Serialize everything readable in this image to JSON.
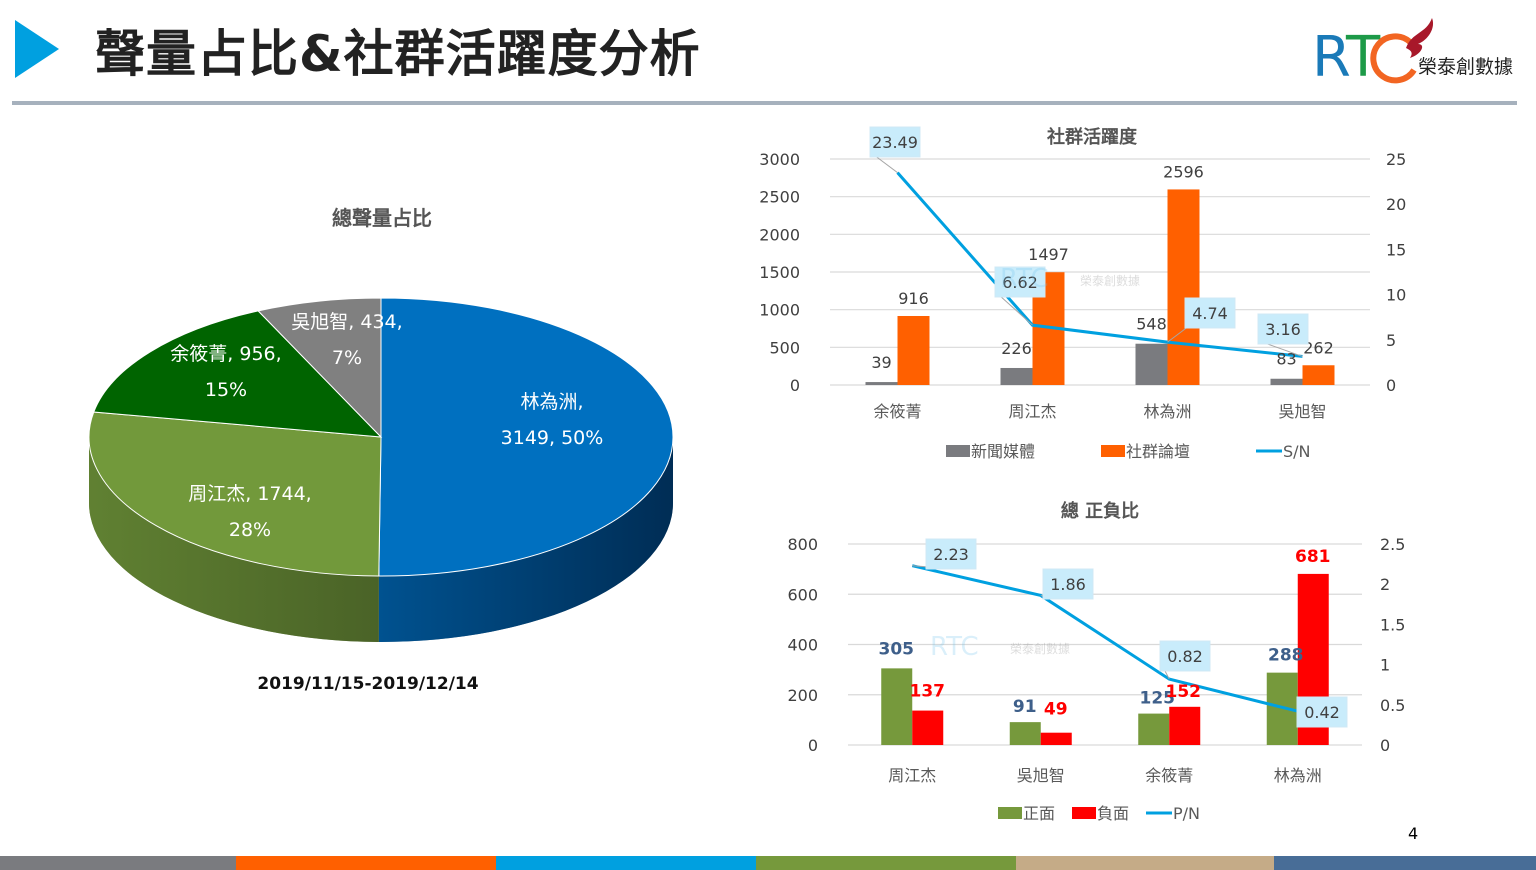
{
  "header": {
    "title": "聲量占比&社群活躍度分析",
    "logo_letters": "RTC",
    "logo_text": "榮泰創數據",
    "arrow_color": "#00a0e0"
  },
  "page_number": "4",
  "footer_colors": [
    "#7a7b7f",
    "#ff6000",
    "#00a0e0",
    "#76993c",
    "#c5ab87",
    "#486d97"
  ],
  "watermark": {
    "letters": "RTC",
    "text": "榮泰創數據"
  },
  "chart_data": [
    {
      "type": "pie",
      "title": "總聲量占比",
      "subtitle": "2019/11/15-2019/12/14",
      "slices": [
        {
          "label": "林為洲",
          "value": 3149,
          "percent": "50%",
          "color": "#0070c0",
          "side_color": "#002d55"
        },
        {
          "label": "周江杰",
          "value": 1744,
          "percent": "28%",
          "color": "#72993b",
          "side_color": "#4a6327"
        },
        {
          "label": "余筱菁",
          "value": 956,
          "percent": "15%",
          "color": "#006400",
          "side_color": "#004000"
        },
        {
          "label": "吳旭智",
          "value": 434,
          "percent": "7%",
          "color": "#808080",
          "side_color": "#555555"
        }
      ]
    },
    {
      "type": "bar",
      "title": "社群活躍度",
      "categories": [
        "余筱菁",
        "周江杰",
        "林為洲",
        "吳旭智"
      ],
      "series": [
        {
          "name": "新聞媒體",
          "values": [
            39,
            226,
            548,
            83
          ],
          "color": "#7a7b7f",
          "axis": "left"
        },
        {
          "name": "社群論壇",
          "values": [
            916,
            1497,
            2596,
            262
          ],
          "color": "#ff6000",
          "axis": "left"
        },
        {
          "name": "S/N",
          "values": [
            23.49,
            6.62,
            4.74,
            3.16
          ],
          "color": "#00a0e0",
          "axis": "right",
          "kind": "line"
        }
      ],
      "ylim": [
        0,
        3000
      ],
      "yticks": [
        "0",
        "500",
        "1000",
        "1500",
        "2000",
        "2500",
        "3000"
      ],
      "y2lim": [
        0,
        25
      ],
      "y2ticks": [
        "0",
        "5",
        "10",
        "15",
        "20",
        "25"
      ],
      "legend": "bottom",
      "grid": true
    },
    {
      "type": "bar",
      "title": "總 正負比",
      "categories": [
        "周江杰",
        "吳旭智",
        "余筱菁",
        "林為洲"
      ],
      "series": [
        {
          "name": "正面",
          "values": [
            305,
            91,
            125,
            288
          ],
          "color": "#76993c",
          "label_color": "#3e5f8a",
          "axis": "left"
        },
        {
          "name": "負面",
          "values": [
            137,
            49,
            152,
            681
          ],
          "color": "#ff0000",
          "label_color": "#ff0000",
          "axis": "left"
        },
        {
          "name": "P/N",
          "values": [
            2.23,
            1.86,
            0.82,
            0.42
          ],
          "color": "#00a0e0",
          "axis": "right",
          "kind": "line"
        }
      ],
      "ylim": [
        0,
        800
      ],
      "yticks": [
        "0",
        "200",
        "400",
        "600",
        "800"
      ],
      "y2lim": [
        0,
        2.5
      ],
      "y2ticks": [
        "0",
        "0.5",
        "1",
        "1.5",
        "2",
        "2.5"
      ],
      "legend": "bottom",
      "grid": true
    }
  ]
}
